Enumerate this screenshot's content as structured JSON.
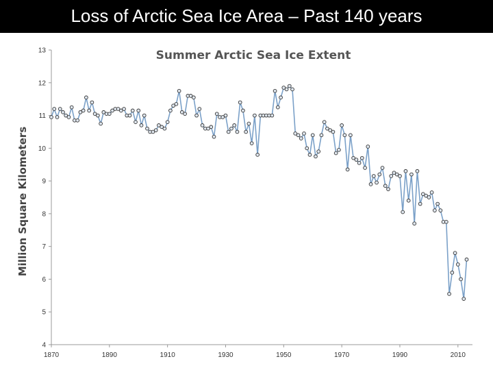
{
  "slide": {
    "title": "Loss of Arctic Sea Ice Area – Past 140 years"
  },
  "colors": {
    "background": "#000000",
    "panel": "#ffffff",
    "line": "#7aa0c8",
    "marker_fill": "#dfe6ee",
    "marker_stroke": "#333333",
    "axis": "#999999"
  },
  "chart_data": {
    "type": "line",
    "title": "Summer Arctic Sea Ice Extent",
    "xlabel": "",
    "ylabel": "Million Square Kilometers",
    "xlim": [
      1870,
      2015
    ],
    "ylim": [
      4,
      13
    ],
    "xticks": [
      1870,
      1890,
      1910,
      1930,
      1950,
      1970,
      1990,
      2010
    ],
    "yticks": [
      4,
      5,
      6,
      7,
      8,
      9,
      10,
      11,
      12,
      13
    ],
    "grid": false,
    "legend": "none",
    "series": [
      {
        "name": "Summer Arctic Sea Ice Extent",
        "x": [
          1870,
          1871,
          1872,
          1873,
          1874,
          1875,
          1876,
          1877,
          1878,
          1879,
          1880,
          1881,
          1882,
          1883,
          1884,
          1885,
          1886,
          1887,
          1888,
          1889,
          1890,
          1891,
          1892,
          1893,
          1894,
          1895,
          1896,
          1897,
          1898,
          1899,
          1900,
          1901,
          1902,
          1903,
          1904,
          1905,
          1906,
          1907,
          1908,
          1909,
          1910,
          1911,
          1912,
          1913,
          1914,
          1915,
          1916,
          1917,
          1918,
          1919,
          1920,
          1921,
          1922,
          1923,
          1924,
          1925,
          1926,
          1927,
          1928,
          1929,
          1930,
          1931,
          1932,
          1933,
          1934,
          1935,
          1936,
          1937,
          1938,
          1939,
          1940,
          1941,
          1942,
          1943,
          1944,
          1945,
          1946,
          1947,
          1948,
          1949,
          1950,
          1951,
          1952,
          1953,
          1954,
          1955,
          1956,
          1957,
          1958,
          1959,
          1960,
          1961,
          1962,
          1963,
          1964,
          1965,
          1966,
          1967,
          1968,
          1969,
          1970,
          1971,
          1972,
          1973,
          1974,
          1975,
          1976,
          1977,
          1978,
          1979,
          1980,
          1981,
          1982,
          1983,
          1984,
          1985,
          1986,
          1987,
          1988,
          1989,
          1990,
          1991,
          1992,
          1993,
          1994,
          1995,
          1996,
          1997,
          1998,
          1999,
          2000,
          2001,
          2002,
          2003,
          2004,
          2005,
          2006,
          2007,
          2008,
          2009,
          2010,
          2011,
          2012,
          2013
        ],
        "values": [
          10.95,
          11.2,
          10.95,
          11.2,
          11.1,
          11.0,
          10.95,
          11.25,
          10.85,
          10.85,
          11.1,
          11.15,
          11.55,
          11.15,
          11.4,
          11.05,
          11.0,
          10.75,
          11.1,
          11.05,
          11.05,
          11.15,
          11.2,
          11.2,
          11.15,
          11.2,
          11.0,
          11.0,
          11.15,
          10.8,
          11.15,
          10.7,
          11.0,
          10.6,
          10.5,
          10.5,
          10.55,
          10.7,
          10.65,
          10.6,
          10.8,
          11.15,
          11.3,
          11.35,
          11.75,
          11.1,
          11.05,
          11.6,
          11.6,
          11.55,
          11.0,
          11.2,
          10.7,
          10.6,
          10.6,
          10.65,
          10.35,
          11.05,
          10.95,
          10.95,
          11.0,
          10.5,
          10.6,
          10.7,
          10.5,
          11.4,
          11.15,
          10.5,
          10.75,
          10.15,
          11.0,
          9.8,
          11.0,
          11.0,
          11.0,
          11.0,
          11.0,
          11.75,
          11.25,
          11.55,
          11.85,
          11.8,
          11.9,
          11.8,
          10.45,
          10.4,
          10.3,
          10.45,
          10.0,
          9.8,
          10.4,
          9.75,
          9.9,
          10.4,
          10.8,
          10.6,
          10.55,
          10.5,
          9.85,
          9.95,
          10.7,
          10.4,
          9.35,
          10.4,
          9.7,
          9.65,
          9.55,
          9.7,
          9.4,
          10.05,
          8.9,
          9.15,
          8.95,
          9.2,
          9.4,
          8.85,
          8.75,
          9.15,
          9.25,
          9.2,
          9.15,
          8.05,
          9.3,
          8.4,
          9.2,
          7.7,
          9.3,
          8.3,
          8.6,
          8.55,
          8.5,
          8.65,
          8.1,
          8.3,
          8.1,
          7.75,
          7.75,
          5.55,
          6.2,
          6.8,
          6.45,
          6.0,
          5.4,
          6.6
        ]
      }
    ]
  }
}
